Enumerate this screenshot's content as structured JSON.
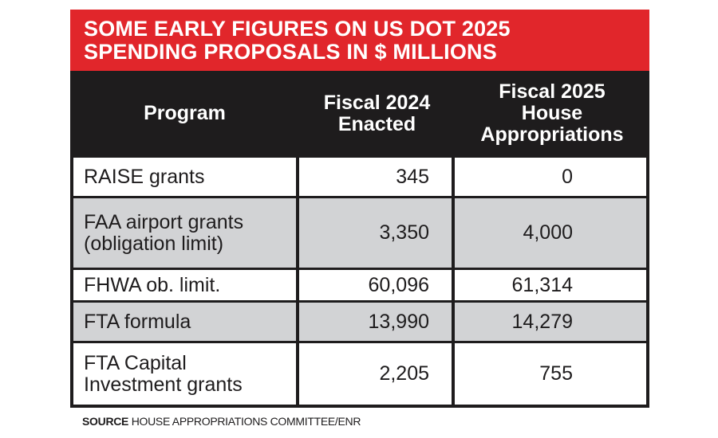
{
  "title": {
    "line1": "SOME EARLY FIGURES ON US DOT 2025",
    "line2": "SPENDING PROPOSALS IN $ MILLIONS"
  },
  "header": {
    "program": "Program",
    "fy2024": [
      "Fiscal 2024",
      "Enacted"
    ],
    "fy2025": [
      "Fiscal 2025",
      "House",
      "Appropriations"
    ]
  },
  "rows": [
    {
      "program": [
        "RAISE grants"
      ],
      "fy2024": "345",
      "fy2025": "0",
      "shade": "white"
    },
    {
      "program": [
        "FAA airport grants",
        "(obligation limit)"
      ],
      "fy2024": "3,350",
      "fy2025": "4,000",
      "shade": "gray"
    },
    {
      "program": [
        "FHWA ob. limit."
      ],
      "fy2024": "60,096",
      "fy2025": "61,314",
      "shade": "white"
    },
    {
      "program": [
        "FTA formula"
      ],
      "fy2024": "13,990",
      "fy2025": "14,279",
      "shade": "gray"
    },
    {
      "program": [
        "FTA Capital",
        "Investment grants"
      ],
      "fy2024": "2,205",
      "fy2025": "755",
      "shade": "white"
    }
  ],
  "source": {
    "label": "SOURCE",
    "text": "HOUSE APPROPRIATIONS COMMITTEE/ENR"
  },
  "colors": {
    "title_bg": "#e1262b",
    "header_bg": "#1e1c1d",
    "row_gray": "#d2d3d5",
    "row_white": "#ffffff"
  }
}
